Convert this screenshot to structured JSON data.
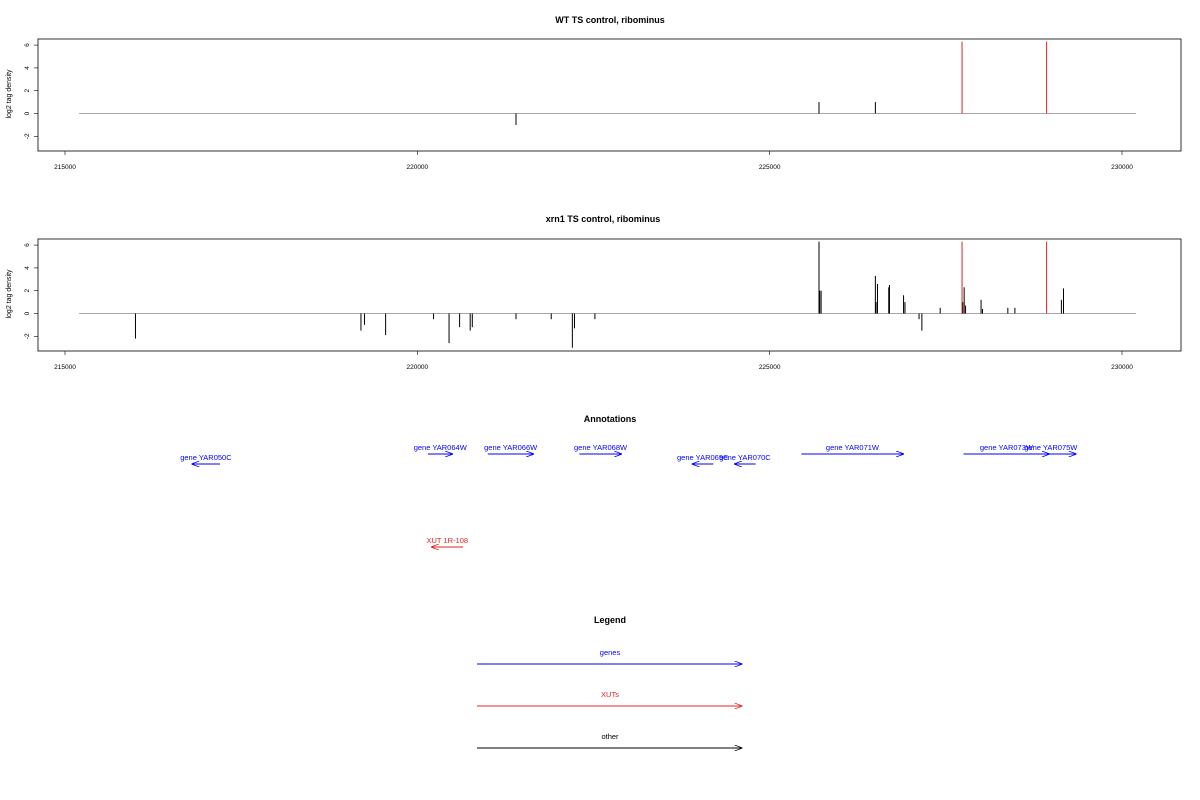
{
  "chart_data": [
    {
      "type": "bar",
      "title": "WT TS control, ribominus",
      "ylabel": "log2 tag density",
      "xlim": [
        215000,
        230000
      ],
      "ylim": [
        -3,
        6.5
      ],
      "x_ticks": [
        "215000",
        "220000",
        "225000",
        "230000"
      ],
      "y_ticks": [
        "-2",
        "0",
        "2",
        "4",
        "6"
      ],
      "baseline": {
        "from": 215200,
        "to": 230200,
        "color": "#888888"
      },
      "series": [
        {
          "color": "#000000",
          "points": [
            [
              221400,
              -1.0
            ],
            [
              225700,
              1.0
            ],
            [
              226500,
              1.0
            ]
          ]
        },
        {
          "color": "#e0241f",
          "points": [
            [
              227730,
              6.3
            ],
            [
              228930,
              6.3
            ]
          ]
        }
      ]
    },
    {
      "type": "bar",
      "title": "xrn1 TS control, ribominus",
      "ylabel": "log2 tag density",
      "xlim": [
        215000,
        230000
      ],
      "ylim": [
        -3,
        6.5
      ],
      "x_ticks": [
        "215000",
        "220000",
        "225000",
        "230000"
      ],
      "y_ticks": [
        "-2",
        "0",
        "2",
        "4",
        "6"
      ],
      "baseline": {
        "from": 215200,
        "to": 230200,
        "color": "#888888"
      },
      "series": [
        {
          "color": "#000000",
          "points": [
            [
              216000,
              -2.2
            ],
            [
              219200,
              -1.5
            ],
            [
              219250,
              -1.0
            ],
            [
              219550,
              -1.9
            ],
            [
              220230,
              -0.5
            ],
            [
              220450,
              -2.6
            ],
            [
              220600,
              -1.2
            ],
            [
              220750,
              -1.5
            ],
            [
              220780,
              -1.2
            ],
            [
              221400,
              -0.5
            ],
            [
              221900,
              -0.5
            ],
            [
              222200,
              -3.0
            ],
            [
              222230,
              -1.3
            ],
            [
              222520,
              -0.5
            ],
            [
              225700,
              6.3
            ],
            [
              225710,
              2.0
            ],
            [
              225730,
              2.0
            ],
            [
              226500,
              3.3
            ],
            [
              226510,
              1.0
            ],
            [
              226530,
              2.6
            ],
            [
              226690,
              2.3
            ],
            [
              226700,
              2.5
            ],
            [
              226900,
              1.6
            ],
            [
              226920,
              1.0
            ],
            [
              227120,
              -0.5
            ],
            [
              227160,
              -1.5
            ],
            [
              227420,
              0.5
            ],
            [
              227740,
              1.0
            ],
            [
              227760,
              2.3
            ],
            [
              227780,
              0.7
            ],
            [
              228000,
              1.2
            ],
            [
              228020,
              0.4
            ],
            [
              228380,
              0.5
            ],
            [
              228480,
              0.5
            ],
            [
              229140,
              1.2
            ],
            [
              229170,
              2.2
            ]
          ]
        },
        {
          "color": "#e0241f",
          "points": [
            [
              227730,
              6.3
            ],
            [
              228930,
              6.3
            ]
          ]
        }
      ]
    }
  ],
  "annotations": {
    "title": "Annotations",
    "genes": [
      {
        "label": "gene YAR050C",
        "x1": 217200,
        "x2": 216800,
        "dir": "left",
        "row": 1
      },
      {
        "label": "gene YAR064W",
        "x1": 220150,
        "x2": 220500,
        "dir": "right",
        "row": 0
      },
      {
        "label": "gene YAR066W",
        "x1": 221000,
        "x2": 221650,
        "dir": "right",
        "row": 0
      },
      {
        "label": "gene YAR068W",
        "x1": 222300,
        "x2": 222900,
        "dir": "right",
        "row": 0
      },
      {
        "label": "gene YAR069C",
        "x1": 224200,
        "x2": 223900,
        "dir": "left",
        "row": 1
      },
      {
        "label": "gene YAR070C",
        "x1": 224800,
        "x2": 224500,
        "dir": "left",
        "row": 1
      },
      {
        "label": "gene YAR071W",
        "x1": 225450,
        "x2": 226900,
        "dir": "right",
        "row": 0
      },
      {
        "label": "gene YAR073W",
        "x1": 227750,
        "x2": 228970,
        "dir": "right",
        "row": 0
      },
      {
        "label": "gene YAR075W",
        "x1": 228630,
        "x2": 229350,
        "dir": "right",
        "row": 0
      }
    ],
    "xuts": [
      {
        "label": "XUT 1R-108",
        "x1": 220650,
        "x2": 220200,
        "dir": "left",
        "row": 2
      }
    ]
  },
  "legend": {
    "title": "Legend",
    "items": [
      {
        "label": "genes",
        "color": "#0000ff"
      },
      {
        "label": "XUTs",
        "color": "#e0241f"
      },
      {
        "label": "other",
        "color": "#000000"
      }
    ]
  }
}
